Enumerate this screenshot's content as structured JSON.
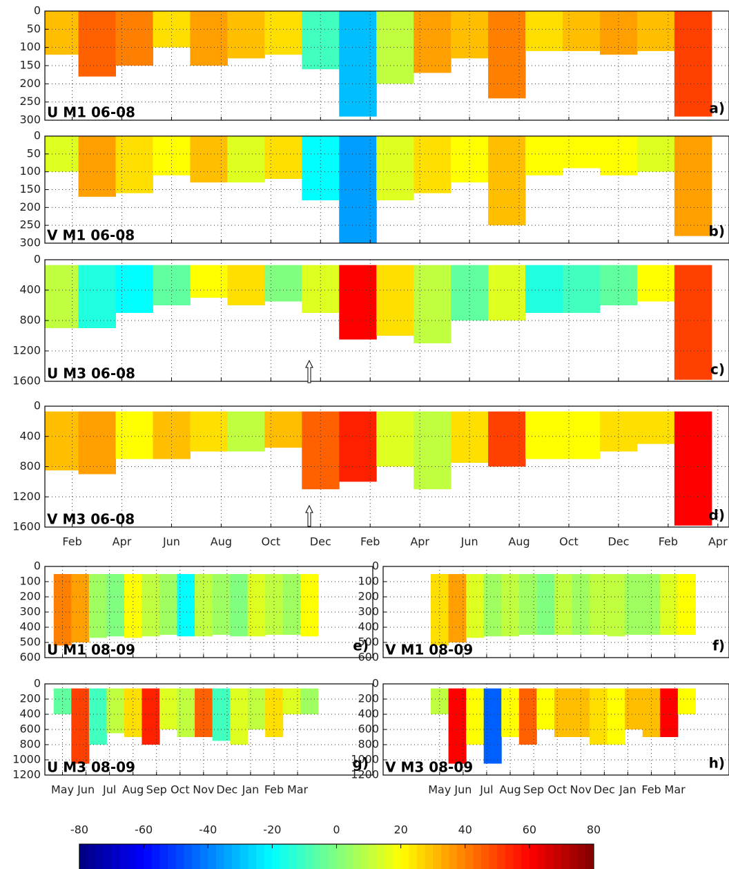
{
  "chart_data": [
    {
      "type": "heatmap",
      "title": "U M1 06-08",
      "label": "a)",
      "top_depth": 0,
      "x": [
        -0.5,
        1,
        2.5,
        4,
        5.5,
        7,
        8.5,
        10,
        11.5,
        13,
        14.5,
        16,
        17.5,
        19,
        20.5,
        22,
        23.5,
        25
      ],
      "values": [
        30,
        45,
        40,
        25,
        35,
        30,
        25,
        -10,
        -30,
        10,
        35,
        30,
        40,
        25,
        30,
        35,
        30,
        50
      ],
      "depths": [
        120,
        180,
        150,
        100,
        150,
        130,
        120,
        160,
        290,
        200,
        170,
        130,
        240,
        110,
        110,
        120,
        110,
        290
      ],
      "xlim": [
        -1.1,
        26.45
      ],
      "ylim": [
        300,
        0
      ],
      "yticks": [
        0,
        50,
        100,
        150,
        200,
        250,
        300
      ],
      "xticks": [
        0,
        2,
        4,
        6,
        8,
        10,
        12,
        14,
        16,
        18,
        20,
        22,
        24
      ],
      "grid": true
    },
    {
      "type": "heatmap",
      "title": "V M1 06-08",
      "label": "b)",
      "top_depth": 0,
      "x": [
        -0.5,
        1,
        2.5,
        4,
        5.5,
        7,
        8.5,
        10,
        11.5,
        13,
        14.5,
        16,
        17.5,
        19,
        20.5,
        22,
        23.5,
        25
      ],
      "values": [
        15,
        35,
        25,
        20,
        30,
        15,
        25,
        -20,
        -35,
        15,
        25,
        20,
        30,
        20,
        20,
        20,
        15,
        35
      ],
      "depths": [
        100,
        170,
        160,
        110,
        130,
        130,
        120,
        180,
        300,
        180,
        160,
        130,
        250,
        110,
        90,
        110,
        100,
        280
      ],
      "xlim": [
        -1.1,
        26.45
      ],
      "ylim": [
        300,
        0
      ],
      "yticks": [
        0,
        50,
        100,
        150,
        200,
        250,
        300
      ],
      "xticks": [
        0,
        2,
        4,
        6,
        8,
        10,
        12,
        14,
        16,
        18,
        20,
        22,
        24
      ],
      "grid": true
    },
    {
      "type": "heatmap",
      "title": "U M3 06-08",
      "label": "c)",
      "top_depth": 70,
      "x": [
        -0.5,
        1,
        2.5,
        4,
        5.5,
        7,
        8.5,
        10,
        11.5,
        13,
        14.5,
        16,
        17.5,
        19,
        20.5,
        22,
        23.5,
        25
      ],
      "values": [
        10,
        -15,
        -20,
        -5,
        20,
        25,
        0,
        15,
        60,
        25,
        10,
        -5,
        15,
        -15,
        -10,
        -5,
        20,
        50
      ],
      "depths": [
        900,
        900,
        700,
        600,
        500,
        600,
        550,
        700,
        1050,
        1000,
        1100,
        800,
        800,
        700,
        700,
        600,
        550,
        1580
      ],
      "xlim": [
        -1.1,
        26.45
      ],
      "ylim": [
        1600,
        0
      ],
      "yticks": [
        0,
        400,
        800,
        1200,
        1600
      ],
      "xticks": [
        0,
        2,
        4,
        6,
        8,
        10,
        12,
        14,
        16,
        18,
        20,
        22,
        24
      ],
      "grid": true
    },
    {
      "type": "heatmap",
      "title": "V M3 06-08",
      "label": "d)",
      "top_depth": 70,
      "x": [
        -0.5,
        1,
        2.5,
        4,
        5.5,
        7,
        8.5,
        10,
        11.5,
        13,
        14.5,
        16,
        17.5,
        19,
        20.5,
        22,
        23.5,
        25
      ],
      "values": [
        30,
        35,
        20,
        30,
        25,
        10,
        30,
        45,
        55,
        15,
        10,
        25,
        50,
        20,
        20,
        25,
        25,
        60
      ],
      "depths": [
        850,
        900,
        700,
        700,
        600,
        600,
        550,
        1100,
        1000,
        800,
        1100,
        750,
        800,
        700,
        700,
        600,
        500,
        1580
      ],
      "xlim": [
        -1.1,
        26.45
      ],
      "ylim": [
        1600,
        0
      ],
      "yticks": [
        0,
        400,
        800,
        1200,
        1600
      ],
      "xticks": [
        {
          "value": 0,
          "label": "Feb"
        },
        {
          "value": 2,
          "label": "Apr"
        },
        {
          "value": 4,
          "label": "Jun"
        },
        {
          "value": 6,
          "label": "Aug"
        },
        {
          "value": 8,
          "label": "Oct"
        },
        {
          "value": 10,
          "label": "Dec"
        },
        {
          "value": 12,
          "label": "Feb"
        },
        {
          "value": 14,
          "label": "Apr"
        },
        {
          "value": 16,
          "label": "Jun"
        },
        {
          "value": 18,
          "label": "Aug"
        },
        {
          "value": 20,
          "label": "Oct"
        },
        {
          "value": 22,
          "label": "Dec"
        },
        {
          "value": 24,
          "label": "Feb"
        },
        {
          "value": 26,
          "label": "Apr"
        }
      ],
      "grid": true
    },
    {
      "type": "heatmap",
      "title": "U M1 08-09",
      "label": "e)",
      "top_depth": 50,
      "x": [
        0,
        0.75,
        1.5,
        2.25,
        3,
        3.75,
        4.5,
        5.25,
        6,
        6.75,
        7.5,
        8.25,
        9,
        9.75,
        10.5
      ],
      "values": [
        40,
        35,
        5,
        0,
        20,
        10,
        5,
        -20,
        10,
        5,
        0,
        15,
        10,
        5,
        20
      ],
      "depths": [
        520,
        500,
        470,
        460,
        470,
        460,
        450,
        460,
        460,
        450,
        460,
        460,
        450,
        450,
        460
      ],
      "xlim": [
        -0.75,
        13.2
      ],
      "ylim": [
        600,
        0
      ],
      "yticks": [
        0,
        100,
        200,
        300,
        400,
        500,
        600
      ],
      "xticks": [
        0,
        1,
        2,
        3,
        4,
        5,
        6,
        7,
        8,
        9,
        10
      ],
      "grid": true
    },
    {
      "type": "heatmap",
      "title": "V M1 08-09",
      "label": "f)",
      "top_depth": 50,
      "x": [
        0,
        0.75,
        1.5,
        2.25,
        3,
        3.75,
        4.5,
        5.25,
        6,
        6.75,
        7.5,
        8.25,
        9,
        9.75,
        10.5
      ],
      "values": [
        25,
        35,
        15,
        5,
        10,
        5,
        0,
        10,
        5,
        10,
        10,
        5,
        5,
        15,
        20
      ],
      "depths": [
        520,
        500,
        470,
        460,
        460,
        450,
        450,
        450,
        450,
        450,
        460,
        450,
        450,
        450,
        450
      ],
      "xlim": [
        -2.4,
        12.3
      ],
      "ylim": [
        600,
        0
      ],
      "yticks": [
        0,
        100,
        200,
        300,
        400,
        500,
        600
      ],
      "xticks": [
        0,
        1,
        2,
        3,
        4,
        5,
        6,
        7,
        8,
        9,
        10
      ],
      "grid": true
    },
    {
      "type": "heatmap",
      "title": "U M3 08-09",
      "label": "g)",
      "top_depth": 60,
      "x": [
        0,
        0.75,
        1.5,
        2.25,
        3,
        3.75,
        4.5,
        5.25,
        6,
        6.75,
        7.5,
        8.25,
        9,
        9.75,
        10.5
      ],
      "values": [
        -5,
        50,
        -10,
        10,
        25,
        55,
        15,
        10,
        45,
        -10,
        15,
        10,
        25,
        15,
        5
      ],
      "depths": [
        400,
        1050,
        800,
        650,
        700,
        800,
        600,
        700,
        700,
        750,
        800,
        600,
        700,
        400,
        400
      ],
      "xlim": [
        -0.75,
        13.2
      ],
      "ylim": [
        1200,
        0
      ],
      "yticks": [
        0,
        200,
        400,
        600,
        800,
        1000,
        1200
      ],
      "xticks": [
        {
          "value": 0,
          "label": "May"
        },
        {
          "value": 1,
          "label": "Jun"
        },
        {
          "value": 2,
          "label": "Jul"
        },
        {
          "value": 3,
          "label": "Aug"
        },
        {
          "value": 4,
          "label": "Sep"
        },
        {
          "value": 5,
          "label": "Oct"
        },
        {
          "value": 6,
          "label": "Nov"
        },
        {
          "value": 7,
          "label": "Dec"
        },
        {
          "value": 8,
          "label": "Jan"
        },
        {
          "value": 9,
          "label": "Feb"
        },
        {
          "value": 10,
          "label": "Mar"
        }
      ],
      "grid": true
    },
    {
      "type": "heatmap",
      "title": "V M3 08-09",
      "label": "h)",
      "top_depth": 60,
      "x": [
        0,
        0.75,
        1.5,
        2.25,
        3,
        3.75,
        4.5,
        5.25,
        6,
        6.75,
        7.5,
        8.25,
        9,
        9.75,
        10.5
      ],
      "values": [
        10,
        60,
        20,
        -45,
        20,
        45,
        20,
        30,
        30,
        25,
        20,
        30,
        30,
        60,
        20
      ],
      "depths": [
        400,
        1050,
        800,
        1050,
        700,
        800,
        600,
        700,
        700,
        800,
        800,
        600,
        700,
        700,
        400
      ],
      "xlim": [
        -2.4,
        12.3
      ],
      "ylim": [
        1200,
        0
      ],
      "yticks": [
        0,
        200,
        400,
        600,
        800,
        1000,
        1200
      ],
      "xticks": [
        {
          "value": 0,
          "label": "May"
        },
        {
          "value": 1,
          "label": "Jun"
        },
        {
          "value": 2,
          "label": "Jul"
        },
        {
          "value": 3,
          "label": "Aug"
        },
        {
          "value": 4,
          "label": "Sep"
        },
        {
          "value": 5,
          "label": "Oct"
        },
        {
          "value": 6,
          "label": "Nov"
        },
        {
          "value": 7,
          "label": "Dec"
        },
        {
          "value": 8,
          "label": "Jan"
        },
        {
          "value": 9,
          "label": "Feb"
        },
        {
          "value": 10,
          "label": "Mar"
        }
      ],
      "grid": true
    },
    {
      "type": "colorbar",
      "xlim": [
        -80,
        80
      ],
      "xticks": [
        -80,
        -60,
        -40,
        -20,
        0,
        20,
        40,
        60,
        80
      ]
    }
  ]
}
